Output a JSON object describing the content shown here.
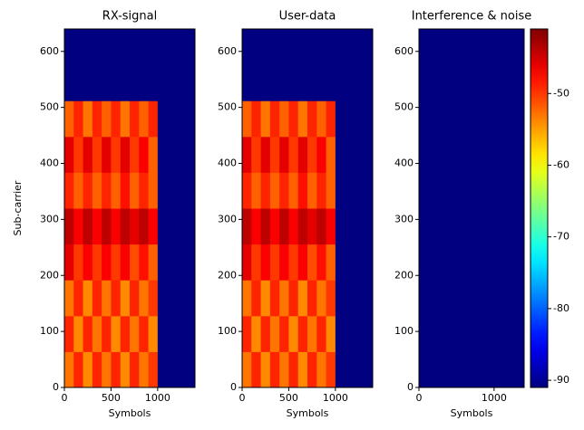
{
  "chart_data": [
    {
      "type": "heatmap",
      "title": "RX-signal",
      "x_label": "Symbols",
      "y_label": "Sub-carrier",
      "xlim": [
        0,
        1400
      ],
      "ylim": [
        0,
        640
      ],
      "xticks": [
        0,
        500,
        1000
      ],
      "yticks": [
        0,
        100,
        200,
        300,
        400,
        500,
        600
      ],
      "xbins": [
        0,
        100,
        200,
        300,
        400,
        500,
        600,
        700,
        800,
        900,
        1000,
        1100,
        1200,
        1300,
        1400
      ],
      "ybins": [
        0,
        64,
        128,
        192,
        256,
        320,
        384,
        448,
        512,
        576,
        640
      ],
      "values": [
        [
          -53,
          -49,
          -54,
          -49,
          -53,
          -49,
          -54,
          -49,
          -53,
          -50,
          -91,
          -91,
          -91,
          -91
        ],
        [
          -49,
          -54,
          -49,
          -53,
          -49,
          -54,
          -49,
          -53,
          -49,
          -54,
          -91,
          -91,
          -91,
          -91
        ],
        [
          -53,
          -49,
          -54,
          -49,
          -53,
          -49,
          -54,
          -49,
          -53,
          -50,
          -91,
          -91,
          -91,
          -91
        ],
        [
          -46,
          -50,
          -47,
          -50,
          -47,
          -50,
          -47,
          -51,
          -48,
          -52,
          -91,
          -91,
          -91,
          -91
        ],
        [
          -44,
          -47,
          -44,
          -47,
          -44,
          -47,
          -44,
          -46,
          -44,
          -47,
          -91,
          -91,
          -91,
          -91
        ],
        [
          -49,
          -52,
          -49,
          -52,
          -49,
          -52,
          -48,
          -52,
          -49,
          -52,
          -91,
          -91,
          -91,
          -91
        ],
        [
          -46,
          -50,
          -46,
          -50,
          -46,
          -50,
          -46,
          -50,
          -47,
          -52,
          -91,
          -91,
          -91,
          -91
        ],
        [
          -52,
          -49,
          -53,
          -49,
          -52,
          -49,
          -53,
          -49,
          -52,
          -49,
          -91,
          -91,
          -91,
          -91
        ],
        [
          -91,
          -91,
          -91,
          -91,
          -91,
          -91,
          -91,
          -91,
          -91,
          -91,
          -91,
          -91,
          -91,
          -91
        ],
        [
          -91,
          -91,
          -91,
          -91,
          -91,
          -91,
          -91,
          -91,
          -91,
          -91,
          -91,
          -91,
          -91,
          -91
        ]
      ]
    },
    {
      "type": "heatmap",
      "title": "User-data",
      "x_label": "Symbols",
      "xlim": [
        0,
        1400
      ],
      "ylim": [
        0,
        640
      ],
      "xticks": [
        0,
        500,
        1000
      ],
      "yticks": [
        0,
        100,
        200,
        300,
        400,
        500,
        600
      ],
      "xbins": [
        0,
        100,
        200,
        300,
        400,
        500,
        600,
        700,
        800,
        900,
        1000,
        1100,
        1200,
        1300,
        1400
      ],
      "ybins": [
        0,
        64,
        128,
        192,
        256,
        320,
        384,
        448,
        512,
        576,
        640
      ],
      "values": [
        [
          -53,
          -49,
          -54,
          -49,
          -53,
          -49,
          -54,
          -49,
          -53,
          -50,
          -91,
          -91,
          -91,
          -91
        ],
        [
          -49,
          -54,
          -49,
          -53,
          -49,
          -54,
          -49,
          -53,
          -49,
          -54,
          -91,
          -91,
          -91,
          -91
        ],
        [
          -53,
          -49,
          -54,
          -49,
          -53,
          -49,
          -54,
          -49,
          -53,
          -50,
          -91,
          -91,
          -91,
          -91
        ],
        [
          -46,
          -50,
          -47,
          -50,
          -47,
          -50,
          -47,
          -51,
          -48,
          -52,
          -91,
          -91,
          -91,
          -91
        ],
        [
          -44,
          -47,
          -44,
          -47,
          -44,
          -47,
          -44,
          -46,
          -44,
          -47,
          -91,
          -91,
          -91,
          -91
        ],
        [
          -49,
          -52,
          -49,
          -52,
          -49,
          -52,
          -48,
          -52,
          -49,
          -52,
          -91,
          -91,
          -91,
          -91
        ],
        [
          -46,
          -50,
          -46,
          -50,
          -46,
          -50,
          -46,
          -50,
          -47,
          -52,
          -91,
          -91,
          -91,
          -91
        ],
        [
          -52,
          -49,
          -53,
          -49,
          -52,
          -49,
          -53,
          -49,
          -52,
          -49,
          -91,
          -91,
          -91,
          -91
        ],
        [
          -91,
          -91,
          -91,
          -91,
          -91,
          -91,
          -91,
          -91,
          -91,
          -91,
          -91,
          -91,
          -91,
          -91
        ],
        [
          -91,
          -91,
          -91,
          -91,
          -91,
          -91,
          -91,
          -91,
          -91,
          -91,
          -91,
          -91,
          -91,
          -91
        ]
      ]
    },
    {
      "type": "heatmap",
      "title": "Interference & noise",
      "x_label": "Symbols",
      "xlim": [
        0,
        1400
      ],
      "ylim": [
        0,
        640
      ],
      "xticks": [
        0,
        1000
      ],
      "yticks": [
        0,
        100,
        200,
        300,
        400,
        500,
        600
      ],
      "xbins": [
        0,
        100,
        200,
        300,
        400,
        500,
        600,
        700,
        800,
        900,
        1000,
        1100,
        1200,
        1300,
        1400
      ],
      "ybins": [
        0,
        64,
        128,
        192,
        256,
        320,
        384,
        448,
        512,
        576,
        640
      ],
      "values": [
        [
          -91,
          -91,
          -91,
          -91,
          -91,
          -91,
          -91,
          -91,
          -91,
          -91,
          -91,
          -91,
          -91,
          -91
        ],
        [
          -91,
          -91,
          -91,
          -91,
          -91,
          -91,
          -91,
          -91,
          -91,
          -91,
          -91,
          -91,
          -91,
          -91
        ],
        [
          -91,
          -91,
          -91,
          -91,
          -91,
          -91,
          -91,
          -91,
          -91,
          -91,
          -91,
          -91,
          -91,
          -91
        ],
        [
          -91,
          -91,
          -91,
          -91,
          -91,
          -91,
          -91,
          -91,
          -91,
          -91,
          -91,
          -91,
          -91,
          -91
        ],
        [
          -91,
          -91,
          -91,
          -91,
          -91,
          -91,
          -91,
          -91,
          -91,
          -91,
          -91,
          -91,
          -91,
          -91
        ],
        [
          -91,
          -91,
          -91,
          -91,
          -91,
          -91,
          -91,
          -91,
          -91,
          -91,
          -91,
          -91,
          -91,
          -91
        ],
        [
          -91,
          -91,
          -91,
          -91,
          -91,
          -91,
          -91,
          -91,
          -91,
          -91,
          -91,
          -91,
          -91,
          -91
        ],
        [
          -91,
          -91,
          -91,
          -91,
          -91,
          -91,
          -91,
          -91,
          -91,
          -91,
          -91,
          -91,
          -91,
          -91
        ],
        [
          -91,
          -91,
          -91,
          -91,
          -91,
          -91,
          -91,
          -91,
          -91,
          -91,
          -91,
          -91,
          -91,
          -91
        ],
        [
          -91,
          -91,
          -91,
          -91,
          -91,
          -91,
          -91,
          -91,
          -91,
          -91,
          -91,
          -91,
          -91,
          -91
        ]
      ]
    },
    {
      "type": "colorbar",
      "colormap": "jet",
      "clim": [
        -91,
        -41
      ],
      "ticks": [
        -50,
        -60,
        -70,
        -80,
        -90
      ]
    }
  ]
}
